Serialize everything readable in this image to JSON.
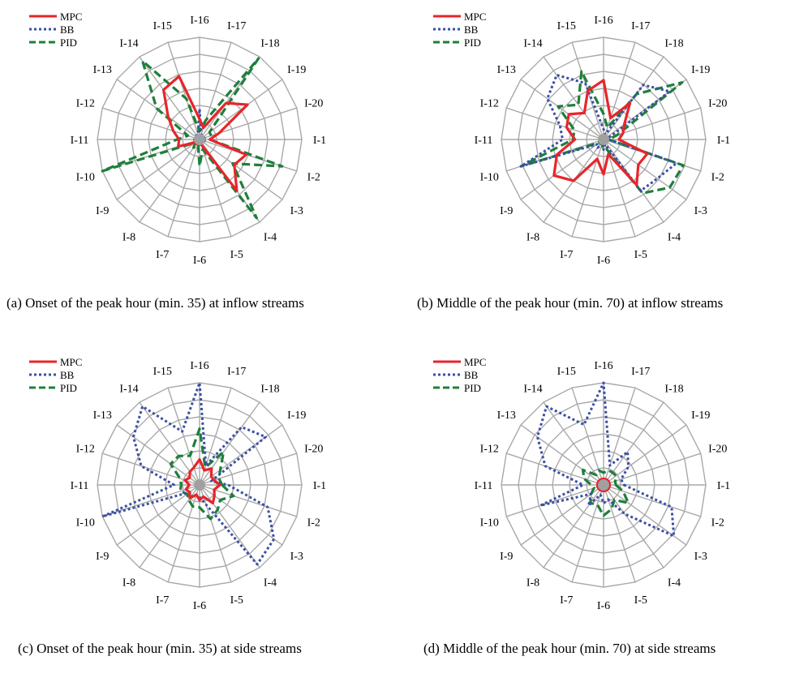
{
  "colors": {
    "MPC": "#e8252a",
    "BB": "#3b4fa3",
    "PID": "#1e7f3a",
    "grid": "#a9a9a9",
    "hub": "#a0a0a0"
  },
  "legend": [
    {
      "name": "MPC",
      "style": "solid"
    },
    {
      "name": "BB",
      "style": "dotted"
    },
    {
      "name": "PID",
      "style": "dashed"
    }
  ],
  "axis_labels": [
    "I-1",
    "I-2",
    "I-3",
    "I-4",
    "I-5",
    "I-6",
    "I-7",
    "I-8",
    "I-9",
    "I-10",
    "I-11",
    "I-12",
    "I-13",
    "I-14",
    "I-15",
    "I-16",
    "I-17",
    "I-18",
    "I-19",
    "I-20"
  ],
  "chart_data": [
    {
      "type": "radar",
      "caption": "(a)  Onset of the peak hour (min. 35) at inflow streams",
      "axes": [
        "I-1",
        "I-2",
        "I-3",
        "I-4",
        "I-5",
        "I-6",
        "I-7",
        "I-8",
        "I-9",
        "I-10",
        "I-11",
        "I-12",
        "I-13",
        "I-14",
        "I-15",
        "I-16",
        "I-17",
        "I-18",
        "I-19",
        "I-20"
      ],
      "rings": 6,
      "series": [
        {
          "name": "MPC",
          "values": [
            0.1,
            0.48,
            0.42,
            0.62,
            0.05,
            0.05,
            0.05,
            0.05,
            0.05,
            0.22,
            0.2,
            0.27,
            0.38,
            0.6,
            0.65,
            0.2,
            0.12,
            0.44,
            0.58,
            0.2
          ]
        },
        {
          "name": "BB",
          "values": [
            0.05,
            0.05,
            0.05,
            0.05,
            0.05,
            0.05,
            0.05,
            0.05,
            0.05,
            0.05,
            0.05,
            0.05,
            0.05,
            0.05,
            0.05,
            0.3,
            0.05,
            0.05,
            0.05,
            0.05
          ]
        },
        {
          "name": "PID",
          "values": [
            0.1,
            0.85,
            0.4,
            0.95,
            0.1,
            0.26,
            0.05,
            0.1,
            0.05,
            1.0,
            0.22,
            0.12,
            0.52,
            0.95,
            0.42,
            0.08,
            0.2,
            0.98,
            0.12,
            0.12
          ]
        }
      ]
    },
    {
      "type": "radar",
      "caption": "(b)  Middle of the peak hour (min. 70) at inflow streams",
      "axes": [
        "I-1",
        "I-2",
        "I-3",
        "I-4",
        "I-5",
        "I-6",
        "I-7",
        "I-8",
        "I-9",
        "I-10",
        "I-11",
        "I-12",
        "I-13",
        "I-14",
        "I-15",
        "I-16",
        "I-17",
        "I-18",
        "I-19",
        "I-20"
      ],
      "rings": 6,
      "series": [
        {
          "name": "MPC",
          "values": [
            0.15,
            0.45,
            0.42,
            0.55,
            0.15,
            0.34,
            0.2,
            0.5,
            0.6,
            0.48,
            0.28,
            0.38,
            0.42,
            0.32,
            0.5,
            0.58,
            0.22,
            0.44,
            0.25,
            0.2
          ]
        },
        {
          "name": "BB",
          "values": [
            0.05,
            0.75,
            0.65,
            0.62,
            0.05,
            0.1,
            0.05,
            0.1,
            0.08,
            0.85,
            0.4,
            0.45,
            0.68,
            0.78,
            0.58,
            0.1,
            0.05,
            0.66,
            0.8,
            0.05
          ]
        },
        {
          "name": "PID",
          "values": [
            0.05,
            0.82,
            0.8,
            0.65,
            0.1,
            0.1,
            0.05,
            0.05,
            0.05,
            0.85,
            0.3,
            0.3,
            0.55,
            0.42,
            0.7,
            0.25,
            0.12,
            0.55,
            0.95,
            0.14
          ]
        }
      ]
    },
    {
      "type": "radar",
      "caption": "(c)  Onset of the peak hour (min. 35) at side streams",
      "axes": [
        "I-1",
        "I-2",
        "I-3",
        "I-4",
        "I-5",
        "I-6",
        "I-7",
        "I-8",
        "I-9",
        "I-10",
        "I-11",
        "I-12",
        "I-13",
        "I-14",
        "I-15",
        "I-16",
        "I-17",
        "I-18",
        "I-19",
        "I-20"
      ],
      "rings": 6,
      "series": [
        {
          "name": "MPC",
          "values": [
            0.2,
            0.15,
            0.18,
            0.22,
            0.12,
            0.15,
            0.1,
            0.16,
            0.12,
            0.14,
            0.1,
            0.15,
            0.12,
            0.16,
            0.18,
            0.25,
            0.15,
            0.2,
            0.14,
            0.15
          ]
        },
        {
          "name": "BB",
          "values": [
            0.28,
            0.7,
            0.9,
            0.96,
            0.2,
            0.12,
            0.1,
            0.14,
            0.12,
            1.0,
            0.25,
            0.6,
            0.8,
            0.95,
            0.55,
            1.0,
            0.2,
            0.7,
            0.8,
            0.12
          ]
        },
        {
          "name": "PID",
          "values": [
            0.22,
            0.35,
            0.25,
            0.3,
            0.35,
            0.22,
            0.22,
            0.18,
            0.15,
            0.2,
            0.18,
            0.2,
            0.35,
            0.35,
            0.3,
            0.55,
            0.18,
            0.4,
            0.25,
            0.2
          ]
        }
      ]
    },
    {
      "type": "radar",
      "caption": "(d)  Middle of the peak hour (min. 70) at side streams",
      "axes": [
        "I-1",
        "I-2",
        "I-3",
        "I-4",
        "I-5",
        "I-6",
        "I-7",
        "I-8",
        "I-9",
        "I-10",
        "I-11",
        "I-12",
        "I-13",
        "I-14",
        "I-15",
        "I-16",
        "I-17",
        "I-18",
        "I-19",
        "I-20"
      ],
      "rings": 6,
      "series": [
        {
          "name": "MPC",
          "values": [
            0.06,
            0.06,
            0.06,
            0.06,
            0.06,
            0.06,
            0.06,
            0.06,
            0.06,
            0.06,
            0.06,
            0.06,
            0.06,
            0.06,
            0.06,
            0.06,
            0.06,
            0.06,
            0.06,
            0.06
          ]
        },
        {
          "name": "BB",
          "values": [
            0.2,
            0.7,
            0.85,
            0.35,
            0.15,
            0.18,
            0.1,
            0.25,
            0.15,
            0.65,
            0.2,
            0.6,
            0.8,
            0.95,
            0.62,
            1.0,
            0.2,
            0.4,
            0.3,
            0.18
          ]
        },
        {
          "name": "PID",
          "values": [
            0.12,
            0.2,
            0.3,
            0.18,
            0.25,
            0.3,
            0.2,
            0.22,
            0.15,
            0.1,
            0.12,
            0.2,
            0.25,
            0.12,
            0.15,
            0.12,
            0.15,
            0.15,
            0.15,
            0.12
          ]
        }
      ]
    }
  ]
}
